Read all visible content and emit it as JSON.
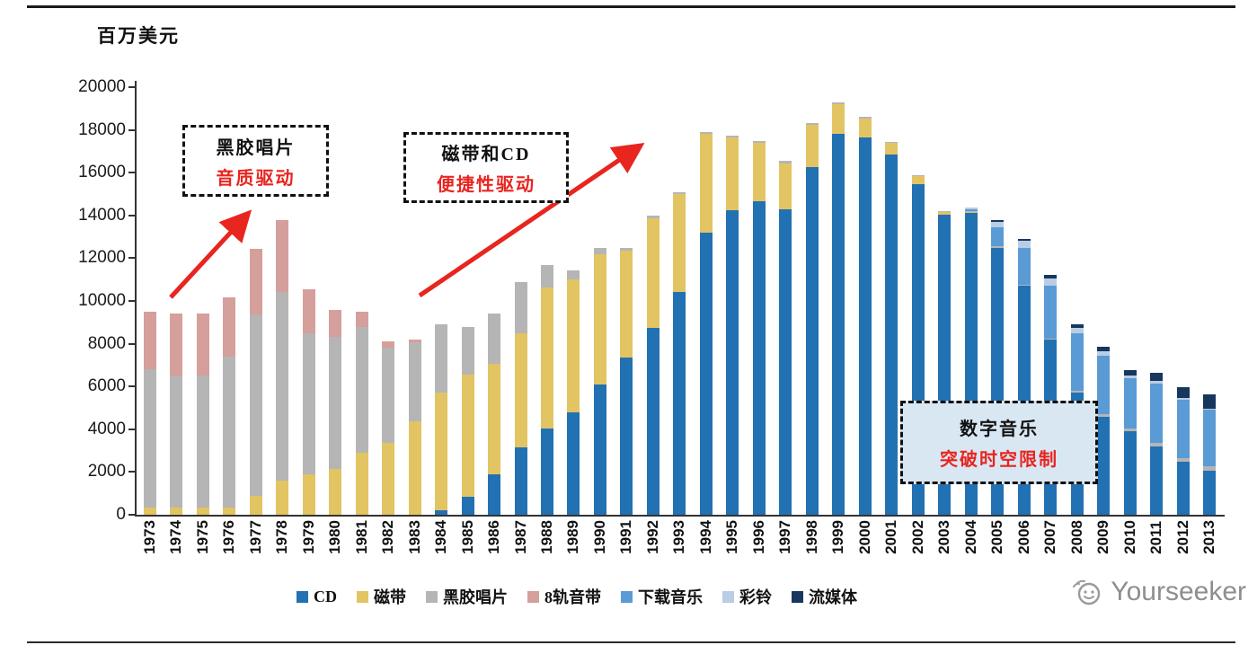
{
  "watermark": {
    "text": "Yourseeker"
  },
  "chart_data": {
    "type": "bar",
    "stacked": true,
    "unit_label": "百万美元",
    "ylim": [
      0,
      20000
    ],
    "ytick_step": 2000,
    "grid": false,
    "legend_position": "bottom",
    "categories": [
      "1973",
      "1974",
      "1975",
      "1976",
      "1977",
      "1978",
      "1979",
      "1980",
      "1981",
      "1982",
      "1983",
      "1984",
      "1985",
      "1986",
      "1987",
      "1988",
      "1989",
      "1990",
      "1991",
      "1992",
      "1993",
      "1994",
      "1995",
      "1996",
      "1997",
      "1998",
      "1999",
      "2000",
      "2001",
      "2002",
      "2003",
      "2004",
      "2005",
      "2006",
      "2007",
      "2008",
      "2009",
      "2010",
      "2011",
      "2012",
      "2013"
    ],
    "series": [
      {
        "name": "CD",
        "color": "#2271b3",
        "values": [
          0,
          0,
          0,
          0,
          0,
          0,
          0,
          0,
          0,
          0,
          0,
          200,
          850,
          1900,
          3150,
          4050,
          4800,
          6100,
          7350,
          8750,
          10400,
          13200,
          14250,
          14650,
          14300,
          16250,
          17800,
          17650,
          16850,
          15450,
          14050,
          14100,
          12500,
          10700,
          8200,
          5700,
          4600,
          3900,
          3200,
          2500,
          2050
        ]
      },
      {
        "name": "磁带",
        "color": "#e2c462",
        "values": [
          350,
          350,
          350,
          350,
          900,
          1600,
          1900,
          2150,
          2900,
          3350,
          4350,
          5500,
          5700,
          5150,
          5350,
          6600,
          6200,
          6100,
          5000,
          5100,
          4600,
          4600,
          3400,
          2750,
          2150,
          2000,
          1400,
          900,
          550,
          400,
          100,
          50,
          0,
          0,
          0,
          0,
          0,
          0,
          0,
          0,
          0
        ]
      },
      {
        "name": "黑胶唱片",
        "color": "#b5b5b5",
        "values": [
          6450,
          6150,
          6150,
          7050,
          8450,
          8800,
          6600,
          6150,
          5900,
          4450,
          3700,
          3200,
          2250,
          2350,
          2400,
          1050,
          450,
          300,
          150,
          150,
          100,
          100,
          100,
          100,
          100,
          50,
          100,
          50,
          50,
          50,
          50,
          50,
          50,
          50,
          50,
          100,
          100,
          150,
          150,
          150,
          200
        ]
      },
      {
        "name": "8轨音带",
        "color": "#d59f9b",
        "values": [
          2700,
          2900,
          2900,
          2750,
          3100,
          3400,
          2050,
          1300,
          700,
          300,
          150,
          0,
          0,
          0,
          0,
          0,
          0,
          0,
          0,
          0,
          0,
          0,
          0,
          0,
          0,
          0,
          0,
          0,
          0,
          0,
          0,
          0,
          0,
          0,
          0,
          0,
          0,
          0,
          0,
          0,
          0
        ]
      },
      {
        "name": "下载音乐",
        "color": "#5b9bd5",
        "values": [
          0,
          0,
          0,
          0,
          0,
          0,
          0,
          0,
          0,
          0,
          0,
          0,
          0,
          0,
          0,
          0,
          0,
          0,
          0,
          0,
          0,
          0,
          0,
          0,
          0,
          0,
          0,
          0,
          0,
          0,
          0,
          100,
          900,
          1750,
          2450,
          2700,
          2750,
          2350,
          2800,
          2750,
          2650
        ]
      },
      {
        "name": "彩铃",
        "color": "#b9cde5",
        "values": [
          0,
          0,
          0,
          0,
          0,
          0,
          0,
          0,
          0,
          0,
          0,
          0,
          0,
          0,
          0,
          0,
          0,
          0,
          0,
          0,
          0,
          0,
          0,
          0,
          0,
          0,
          0,
          0,
          0,
          0,
          0,
          50,
          250,
          300,
          350,
          250,
          200,
          100,
          100,
          50,
          50
        ]
      },
      {
        "name": "流媒体",
        "color": "#17375e",
        "values": [
          0,
          0,
          0,
          0,
          0,
          0,
          0,
          0,
          0,
          0,
          0,
          0,
          0,
          0,
          0,
          0,
          0,
          0,
          0,
          0,
          0,
          0,
          0,
          0,
          0,
          0,
          0,
          0,
          0,
          0,
          0,
          0,
          100,
          100,
          150,
          150,
          200,
          250,
          400,
          500,
          700
        ]
      }
    ],
    "annotations": [
      {
        "line1": "黑胶唱片",
        "line2": "音质驱动"
      },
      {
        "line1": "磁带和CD",
        "line2": "便捷性驱动"
      },
      {
        "line1": "数字音乐",
        "line2": "突破时空限制"
      }
    ],
    "annotation_colors": {
      "line1": "#111111",
      "line2": "#e8251f",
      "arrow": "#e8251f"
    }
  }
}
